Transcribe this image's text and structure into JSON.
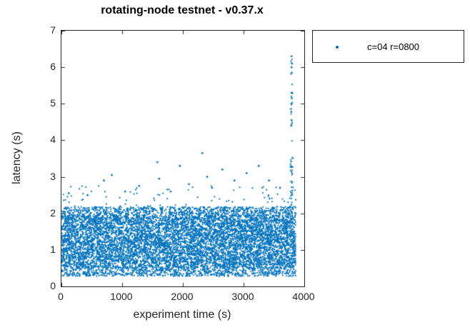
{
  "chart_data": {
    "type": "scatter",
    "title": "rotating-node testnet - v0.37.x",
    "xlabel": "experiment time (s)",
    "ylabel": "latency (s)",
    "xlim": [
      0,
      4000
    ],
    "ylim": [
      0,
      7
    ],
    "x_ticks": [
      0,
      1000,
      2000,
      3000,
      4000
    ],
    "y_ticks": [
      0,
      1,
      2,
      3,
      4,
      5,
      6,
      7
    ],
    "grid": false,
    "legend": {
      "position": "outside-top-right",
      "entries": [
        {
          "label": "c=04 r=0800",
          "color": "#0072BD",
          "marker": "dot"
        }
      ]
    },
    "series": [
      {
        "name": "c=04 r=0800",
        "color": "#0072BD",
        "marker": "point",
        "marker_radius_px": 1.1,
        "description": "Dense latency band between ~0.3s and ~2.2s across the whole 0-3860s experiment, scattered outliers up to ~3.7s, and a tall outlier spike near t=3790s reaching 6.3s.",
        "components": [
          {
            "x": [
              5,
              3860
            ],
            "y": [
              0.28,
              2.18
            ],
            "n": 6500
          },
          {
            "x": [
              5,
              3860
            ],
            "y": [
              0.5,
              1.95
            ],
            "n": 2500
          },
          {
            "x": [
              20,
              3860
            ],
            "y": [
              2.18,
              2.75
            ],
            "n": 80
          },
          {
            "x": [
              3770,
              3815
            ],
            "y": [
              2.2,
              3.6
            ],
            "n": 30
          },
          {
            "x": [
              3780,
              3805
            ],
            "y": [
              3.8,
              6.3
            ],
            "n": 18
          }
        ],
        "notable_points": [
          [
            120,
            2.55
          ],
          [
            430,
            2.5
          ],
          [
            700,
            2.9
          ],
          [
            830,
            3.05
          ],
          [
            1050,
            2.6
          ],
          [
            1280,
            2.75
          ],
          [
            1580,
            3.4
          ],
          [
            1610,
            2.95
          ],
          [
            1800,
            2.6
          ],
          [
            1950,
            3.3
          ],
          [
            2100,
            2.8
          ],
          [
            2320,
            3.65
          ],
          [
            2400,
            3.0
          ],
          [
            2480,
            2.7
          ],
          [
            2650,
            3.2
          ],
          [
            2850,
            2.9
          ],
          [
            3050,
            3.1
          ],
          [
            3250,
            3.3
          ],
          [
            3420,
            2.9
          ],
          [
            3600,
            2.7
          ],
          [
            3785,
            4.4
          ],
          [
            3792,
            4.55
          ],
          [
            3788,
            5.0
          ],
          [
            3795,
            5.15
          ],
          [
            3790,
            5.3
          ],
          [
            3795,
            5.85
          ],
          [
            3790,
            6.0
          ],
          [
            3796,
            6.1
          ],
          [
            3791,
            6.3
          ]
        ]
      }
    ],
    "colors": {
      "series": "#0072BD",
      "axis": "#262626",
      "title": "#000000"
    }
  }
}
